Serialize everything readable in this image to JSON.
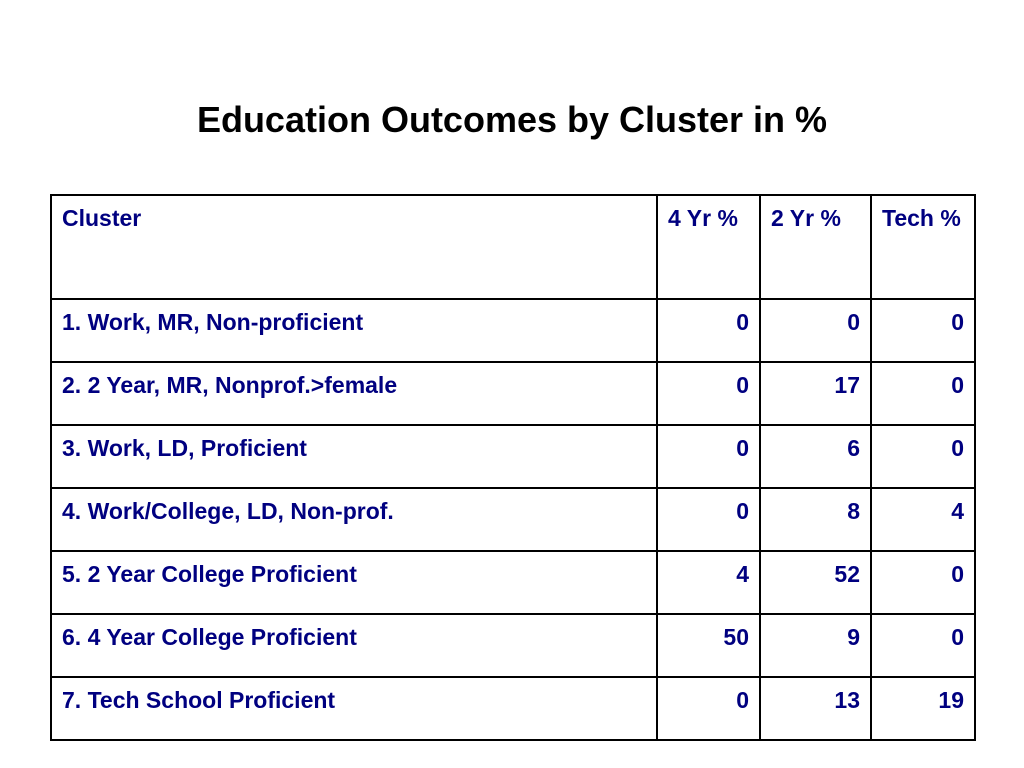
{
  "slide": {
    "title": "Education Outcomes by Cluster in %"
  },
  "table": {
    "headers": [
      "Cluster",
      "4 Yr %",
      "2 Yr %",
      "Tech %"
    ],
    "rows": [
      {
        "cluster": "1.  Work, MR, Non-proficient",
        "four_yr": "0",
        "two_yr": "0",
        "tech": "0"
      },
      {
        "cluster": "2.  2 Year, MR, Nonprof.>female",
        "four_yr": "0",
        "two_yr": "17",
        "tech": "0"
      },
      {
        "cluster": "3.  Work, LD, Proficient",
        "four_yr": "0",
        "two_yr": "6",
        "tech": "0"
      },
      {
        "cluster": "4.  Work/College, LD, Non-prof.",
        "four_yr": "0",
        "two_yr": "8",
        "tech": "4"
      },
      {
        "cluster": "5.  2 Year College Proficient",
        "four_yr": "4",
        "two_yr": "52",
        "tech": "0"
      },
      {
        "cluster": "6.  4 Year College Proficient",
        "four_yr": "50",
        "two_yr": "9",
        "tech": "0"
      },
      {
        "cluster": "7.  Tech School Proficient",
        "four_yr": "0",
        "two_yr": "13",
        "tech": "19"
      }
    ]
  },
  "colors": {
    "title_text": "#000000",
    "table_text": "#000080",
    "border": "#000000",
    "background": "#ffffff"
  }
}
